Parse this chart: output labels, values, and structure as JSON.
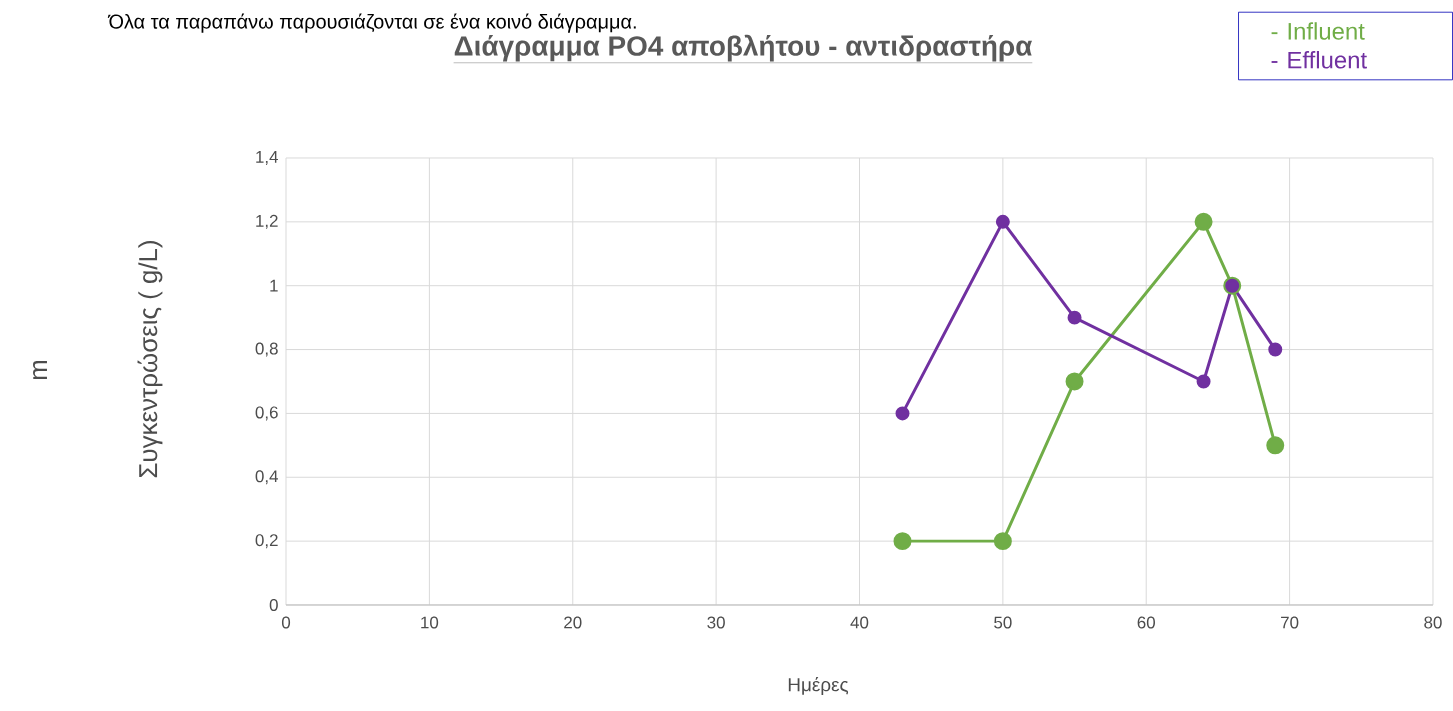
{
  "chart_data": {
    "type": "line",
    "title": "Διάγραμμα PO4 αποβλήτου - αντιδραστήρα",
    "xlabel": "Ημέρες",
    "ylabel": "Συγκεντρώσεις (      g/L)",
    "annotations": [
      "Όλα τα παραπάνω παρουσιάζονται σε ένα κοινό διάγραμμα.",
      "m"
    ],
    "xlim": [
      0,
      80
    ],
    "xticks": [
      0,
      10,
      20,
      30,
      40,
      50,
      60,
      70,
      80
    ],
    "ylim": [
      0,
      1.4
    ],
    "yticks": [
      0,
      {
        "value": 0.2,
        "label": "0,2"
      },
      {
        "value": 0.4,
        "label": "0,4"
      },
      {
        "value": 0.6,
        "label": "0,6"
      },
      {
        "value": 0.8,
        "label": "0,8"
      },
      1,
      {
        "value": 1.2,
        "label": "1,2"
      },
      {
        "value": 1.4,
        "label": "1,4"
      }
    ],
    "grid": true,
    "legend": "top right",
    "marker": "circle",
    "line_style": "solid",
    "series": [
      {
        "name": "- Influent",
        "color": "#70ad47",
        "x": [
          43,
          50,
          55,
          64,
          66,
          69
        ],
        "values": [
          0.2,
          0.2,
          0.7,
          1.2,
          1.0,
          0.5
        ]
      },
      {
        "name": "- Effluent",
        "color": "#7030a0",
        "x": [
          43,
          50,
          55,
          64,
          66,
          69
        ],
        "values": [
          0.6,
          1.2,
          0.9,
          0.7,
          1.0,
          0.8
        ]
      }
    ]
  }
}
